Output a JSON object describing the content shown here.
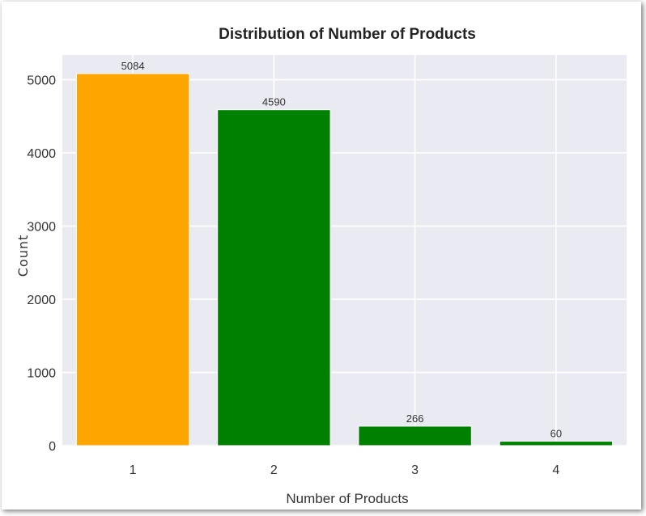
{
  "chart_data": {
    "type": "bar",
    "title": "Distribution of Number of Products",
    "xlabel": "Number of Products",
    "ylabel": "Count",
    "categories": [
      "1",
      "2",
      "3",
      "4"
    ],
    "values": [
      5084,
      4590,
      266,
      60
    ],
    "data_labels": [
      "5084",
      "4590",
      "266",
      "60"
    ],
    "bar_colors": [
      "#ffa500",
      "#008000",
      "#008000",
      "#008000"
    ],
    "y_ticks": [
      0,
      1000,
      2000,
      3000,
      4000,
      5000
    ],
    "y_tick_labels": [
      "0",
      "1000",
      "2000",
      "3000",
      "4000",
      "5000"
    ],
    "ylim": [
      0,
      5338
    ],
    "grid": true,
    "background": "#eaeaf2",
    "grid_color": "#ffffff"
  }
}
